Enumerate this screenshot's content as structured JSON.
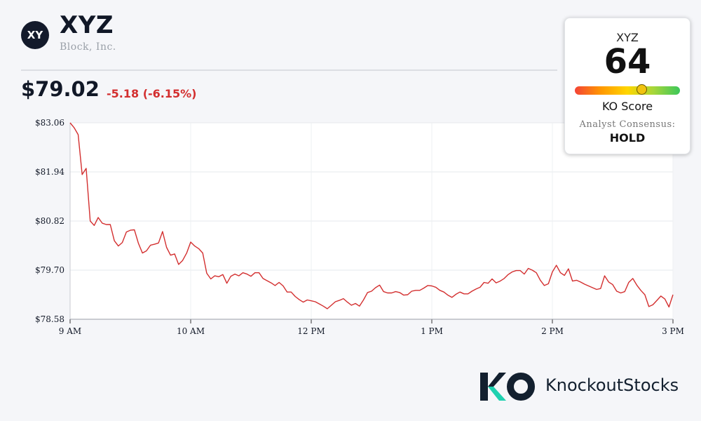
{
  "header": {
    "logo_text": "XY",
    "ticker": "XYZ",
    "company": "Block, Inc.",
    "price": "$79.02",
    "change": "-5.18 (-6.15%)"
  },
  "ko_card": {
    "ticker": "XYZ",
    "score": "64",
    "score_fraction": 0.64,
    "label": "KO Score",
    "consensus_label": "Analyst Consensus:",
    "consensus_value": "HOLD"
  },
  "brand": {
    "name": "KnockoutStocks",
    "logo_letters": "KO"
  },
  "colors": {
    "line": "#d32f2f",
    "change_negative": "#d32f2f",
    "brand_dark": "#13202f",
    "brand_teal": "#1fd1b0"
  },
  "chart_data": {
    "type": "line",
    "title": "",
    "xlabel": "",
    "ylabel": "",
    "grid": true,
    "y_ticks": [
      "$83.06",
      "$81.94",
      "$80.82",
      "$79.70",
      "$78.58"
    ],
    "y_tick_values": [
      83.06,
      81.94,
      80.82,
      79.7,
      78.58
    ],
    "ylim": [
      78.58,
      83.06
    ],
    "x_ticks": [
      "9 AM",
      "10 AM",
      "12 PM",
      "1 PM",
      "2 PM",
      "3 PM"
    ],
    "x_tick_values": [
      0,
      1,
      2,
      3,
      4,
      5
    ],
    "xlim": [
      0,
      5
    ],
    "series": [
      {
        "name": "",
        "x": [
          0,
          0.033,
          0.067,
          0.1,
          0.133,
          0.167,
          0.2,
          0.233,
          0.267,
          0.3,
          0.333,
          0.367,
          0.4,
          0.433,
          0.467,
          0.5,
          0.533,
          0.567,
          0.6,
          0.633,
          0.667,
          0.7,
          0.733,
          0.767,
          0.8,
          0.833,
          0.867,
          0.9,
          0.933,
          0.967,
          1.0,
          1.033,
          1.067,
          1.1,
          1.133,
          1.167,
          1.2,
          1.233,
          1.267,
          1.3,
          1.333,
          1.367,
          1.4,
          1.433,
          1.467,
          1.5,
          1.533,
          1.567,
          1.6,
          1.633,
          1.667,
          1.7,
          1.733,
          1.767,
          1.8,
          1.833,
          1.867,
          1.9,
          1.933,
          1.967,
          2.0,
          2.033,
          2.067,
          2.1,
          2.133,
          2.167,
          2.2,
          2.233,
          2.267,
          2.3,
          2.333,
          2.367,
          2.4,
          2.433,
          2.467,
          2.5,
          2.533,
          2.567,
          2.6,
          2.633,
          2.667,
          2.7,
          2.733,
          2.767,
          2.8,
          2.833,
          2.867,
          2.9,
          2.933,
          2.967,
          3.0,
          3.033,
          3.067,
          3.1,
          3.133,
          3.167,
          3.2,
          3.233,
          3.267,
          3.3,
          3.333,
          3.367,
          3.4,
          3.433,
          3.467,
          3.5,
          3.533,
          3.567,
          3.6,
          3.633,
          3.667,
          3.7,
          3.733,
          3.767,
          3.8,
          3.833,
          3.867,
          3.9,
          3.933,
          3.967,
          4.0,
          4.033,
          4.067,
          4.1,
          4.133,
          4.167,
          4.2,
          4.233,
          4.267,
          4.3,
          4.333,
          4.367,
          4.4,
          4.433,
          4.467,
          4.5,
          4.533,
          4.567,
          4.6,
          4.633,
          4.667,
          4.7,
          4.733,
          4.767,
          4.8,
          4.833,
          4.867,
          4.9,
          4.933,
          4.967,
          5.0
        ],
        "values": [
          83.06,
          82.95,
          82.79,
          81.88,
          82.02,
          80.82,
          80.72,
          80.9,
          80.77,
          80.74,
          80.74,
          80.37,
          80.25,
          80.33,
          80.57,
          80.61,
          80.62,
          80.31,
          80.09,
          80.14,
          80.27,
          80.29,
          80.32,
          80.58,
          80.22,
          80.04,
          80.07,
          79.83,
          79.92,
          80.09,
          80.34,
          80.25,
          80.19,
          80.09,
          79.63,
          79.5,
          79.57,
          79.55,
          79.6,
          79.4,
          79.56,
          79.61,
          79.57,
          79.64,
          79.61,
          79.56,
          79.64,
          79.64,
          79.51,
          79.46,
          79.41,
          79.35,
          79.42,
          79.34,
          79.2,
          79.2,
          79.1,
          79.03,
          78.97,
          79.02,
          79.0,
          78.98,
          78.93,
          78.88,
          78.82,
          78.9,
          78.98,
          79.01,
          79.05,
          78.97,
          78.9,
          78.94,
          78.88,
          79.02,
          79.19,
          79.22,
          79.3,
          79.36,
          79.21,
          79.18,
          79.18,
          79.21,
          79.19,
          79.13,
          79.14,
          79.22,
          79.24,
          79.24,
          79.29,
          79.35,
          79.34,
          79.31,
          79.24,
          79.2,
          79.13,
          79.08,
          79.15,
          79.2,
          79.16,
          79.16,
          79.22,
          79.27,
          79.31,
          79.42,
          79.4,
          79.5,
          79.41,
          79.45,
          79.51,
          79.6,
          79.66,
          79.69,
          79.69,
          79.61,
          79.74,
          79.7,
          79.64,
          79.47,
          79.35,
          79.39,
          79.66,
          79.81,
          79.64,
          79.58,
          79.73,
          79.45,
          79.47,
          79.43,
          79.38,
          79.34,
          79.3,
          79.26,
          79.28,
          79.57,
          79.43,
          79.37,
          79.22,
          79.18,
          79.21,
          79.42,
          79.51,
          79.36,
          79.24,
          79.14,
          78.87,
          78.91,
          79.01,
          79.11,
          79.04,
          78.86,
          79.14
        ]
      }
    ]
  }
}
